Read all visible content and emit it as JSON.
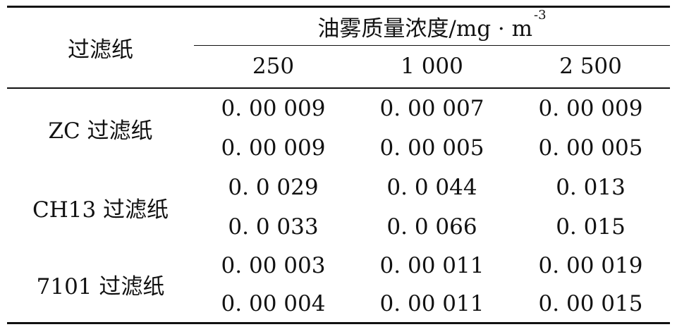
{
  "table": {
    "row_header_title": "过滤纸",
    "column_group_title": "油雾质量浓度/mg · m",
    "column_group_unit_exponent": "-3",
    "columns": [
      "250",
      "1 000",
      "2 500"
    ],
    "groups": [
      {
        "label": "ZC 过滤纸",
        "rows": [
          [
            "0. 00 009",
            "0. 00 007",
            "0. 00 009"
          ],
          [
            "0. 00 009",
            "0. 00 005",
            "0. 00 005"
          ]
        ]
      },
      {
        "label": "CH13 过滤纸",
        "rows": [
          [
            "0. 0 029",
            "0. 0 044",
            "0. 013"
          ],
          [
            "0. 0 033",
            "0. 0 066",
            "0. 015"
          ]
        ]
      },
      {
        "label": "7101 过滤纸",
        "rows": [
          [
            "0. 00 003",
            "0. 00 011",
            "0. 00 019"
          ],
          [
            "0. 00 004",
            "0. 00 011",
            "0. 00 015"
          ]
        ]
      }
    ]
  }
}
